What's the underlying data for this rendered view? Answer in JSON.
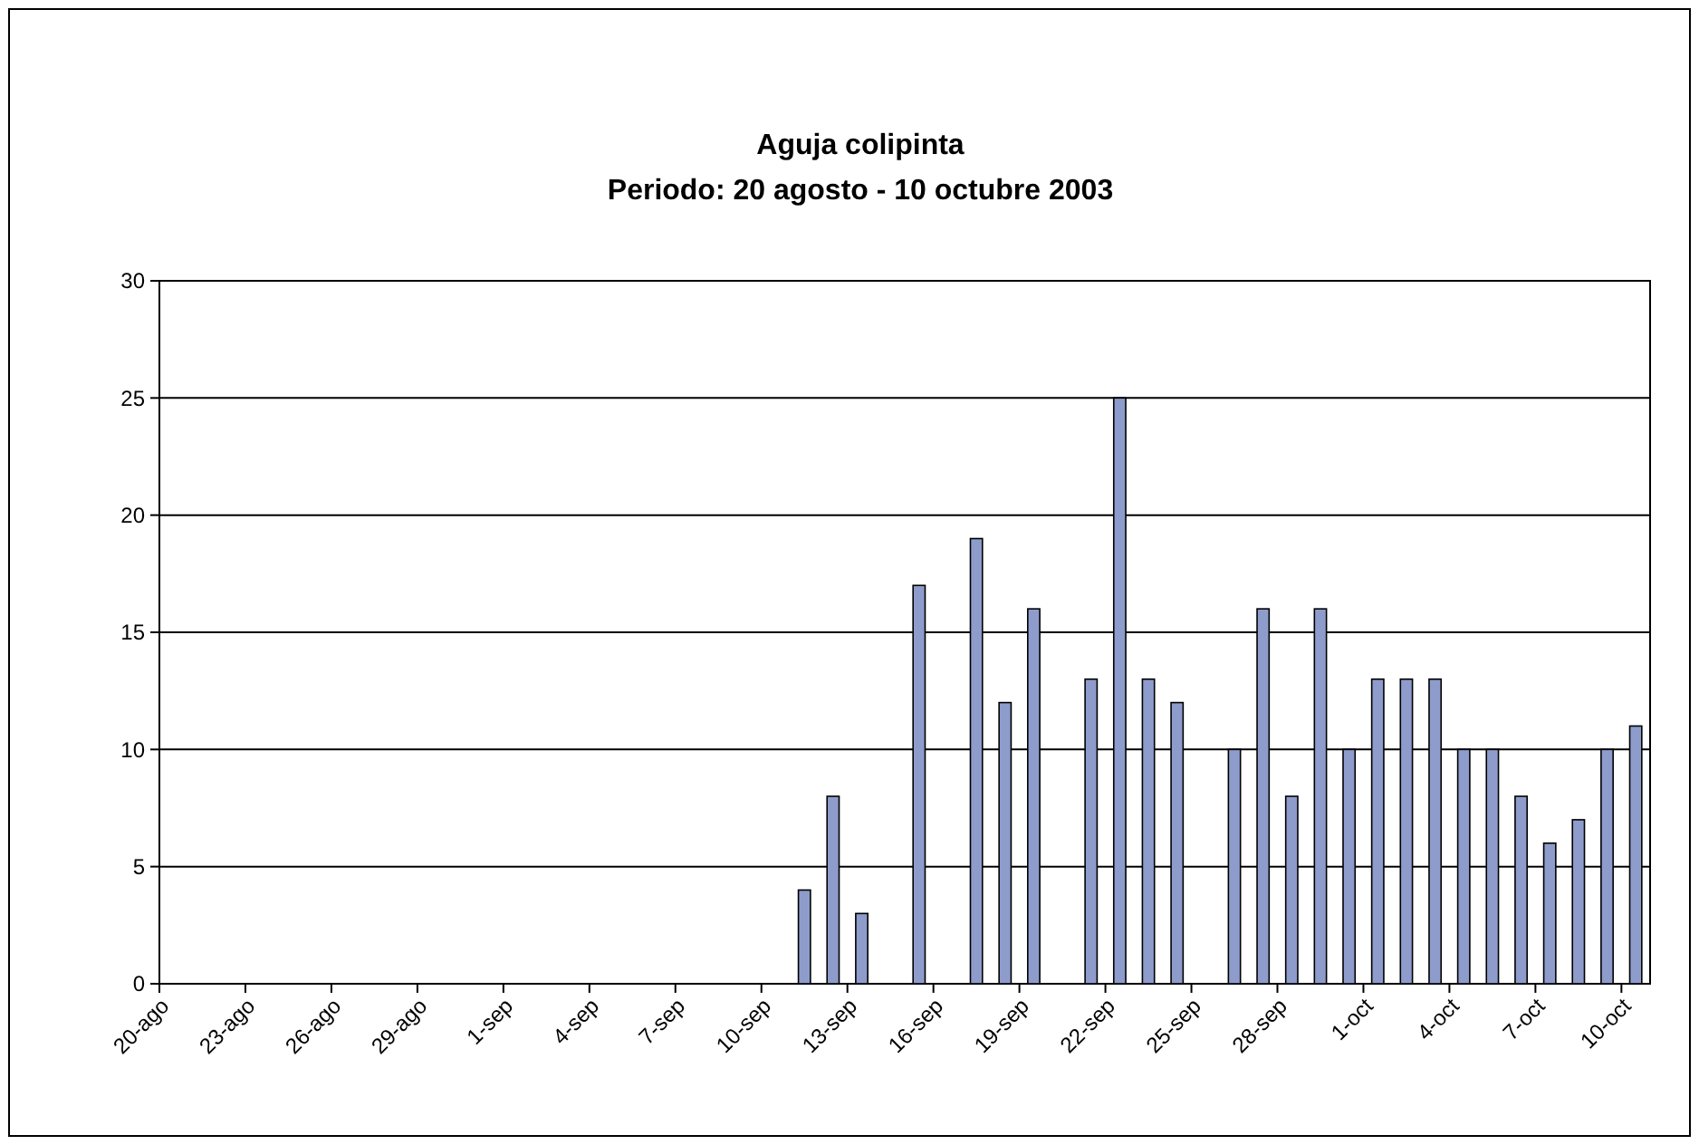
{
  "chart_data": {
    "type": "bar",
    "title": "Aguja colipinta",
    "subtitle": "Periodo: 20 agosto - 10 octubre 2003",
    "categories": [
      "20-ago",
      null,
      null,
      "23-ago",
      null,
      null,
      "26-ago",
      null,
      null,
      "29-ago",
      null,
      null,
      "1-sep",
      null,
      null,
      "4-sep",
      null,
      null,
      "7-sep",
      null,
      null,
      "10-sep",
      null,
      null,
      "13-sep",
      null,
      null,
      "16-sep",
      null,
      null,
      "19-sep",
      null,
      null,
      "22-sep",
      null,
      null,
      "25-sep",
      null,
      null,
      "28-sep",
      null,
      null,
      "1-oct",
      null,
      null,
      "4-oct",
      null,
      null,
      "7-oct",
      null,
      null,
      "10-oct"
    ],
    "values": [
      0,
      0,
      0,
      0,
      0,
      0,
      0,
      0,
      0,
      0,
      0,
      0,
      0,
      0,
      0,
      0,
      0,
      0,
      0,
      0,
      0,
      0,
      4,
      8,
      3,
      0,
      17,
      0,
      19,
      12,
      16,
      0,
      13,
      25,
      13,
      12,
      0,
      10,
      16,
      8,
      16,
      10,
      13,
      13,
      13,
      10,
      10,
      8,
      6,
      7,
      10,
      11
    ],
    "color": "#8e9ccc",
    "ylim": [
      0,
      30
    ],
    "yticks": [
      0,
      5,
      10,
      15,
      20,
      25,
      30
    ],
    "grid": "y"
  }
}
